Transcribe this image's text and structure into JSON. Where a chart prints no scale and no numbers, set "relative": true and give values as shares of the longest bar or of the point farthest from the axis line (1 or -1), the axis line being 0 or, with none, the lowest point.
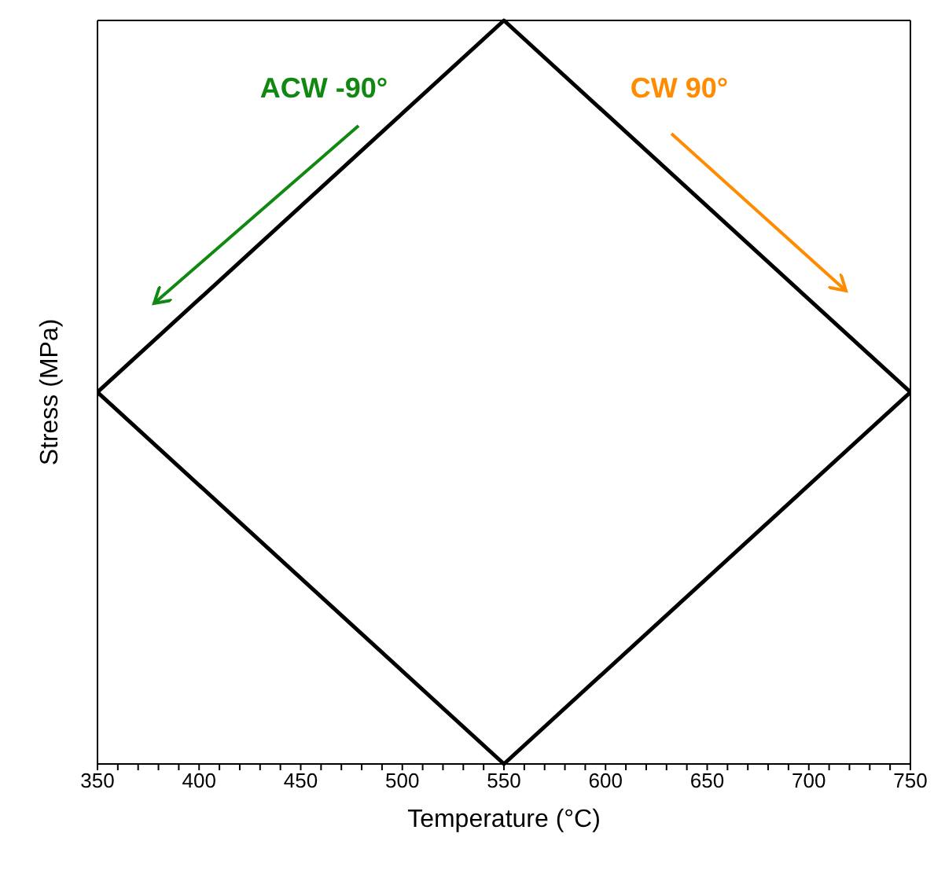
{
  "chart_data": {
    "type": "line",
    "xlabel": "Temperature (°C)",
    "ylabel": "Stress (MPa)",
    "relative": true,
    "x": [
      350,
      550,
      750
    ],
    "series": [
      {
        "color": "#000000",
        "values": [
          0.5,
          1,
          0.5
        ]
      },
      {
        "color": "#000000",
        "values": [
          0.5,
          0,
          0.5
        ]
      }
    ],
    "xlim": [
      350,
      750
    ],
    "xticks": [
      350,
      {
        "value": 360,
        "label": null
      },
      {
        "value": 370,
        "label": null
      },
      {
        "value": 380,
        "label": null
      },
      {
        "value": 390,
        "label": null
      },
      400,
      {
        "value": 410,
        "label": null
      },
      {
        "value": 420,
        "label": null
      },
      {
        "value": 430,
        "label": null
      },
      {
        "value": 440,
        "label": null
      },
      450,
      {
        "value": 460,
        "label": null
      },
      {
        "value": 470,
        "label": null
      },
      {
        "value": 480,
        "label": null
      },
      {
        "value": 490,
        "label": null
      },
      500,
      {
        "value": 510,
        "label": null
      },
      {
        "value": 520,
        "label": null
      },
      {
        "value": 530,
        "label": null
      },
      {
        "value": 540,
        "label": null
      },
      550,
      {
        "value": 560,
        "label": null
      },
      {
        "value": 570,
        "label": null
      },
      {
        "value": 580,
        "label": null
      },
      {
        "value": 590,
        "label": null
      },
      600,
      {
        "value": 610,
        "label": null
      },
      {
        "value": 620,
        "label": null
      },
      {
        "value": 630,
        "label": null
      },
      {
        "value": 640,
        "label": null
      },
      650,
      {
        "value": 660,
        "label": null
      },
      {
        "value": 670,
        "label": null
      },
      {
        "value": 680,
        "label": null
      },
      {
        "value": 690,
        "label": null
      },
      700,
      {
        "value": 710,
        "label": null
      },
      {
        "value": 720,
        "label": null
      },
      {
        "value": 730,
        "label": null
      },
      {
        "value": 740,
        "label": null
      },
      750
    ],
    "annotations": [
      "ACW -90°",
      "CW 90°"
    ],
    "marker": "none",
    "line_style": "solid"
  }
}
